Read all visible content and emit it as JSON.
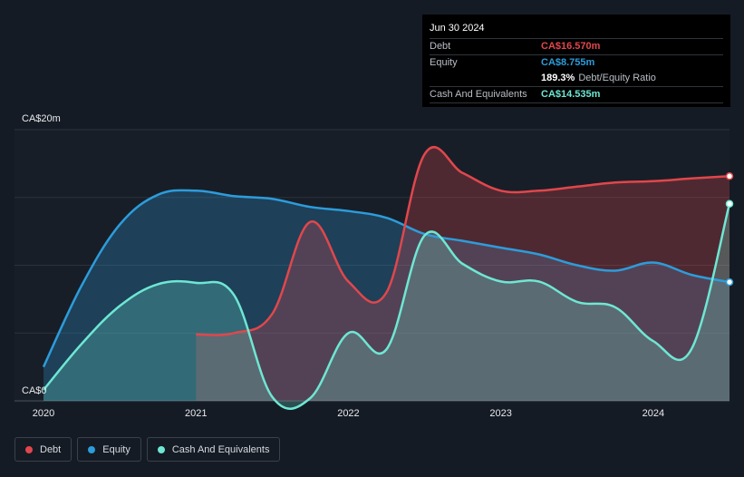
{
  "tooltip": {
    "date": "Jun 30 2024",
    "rows": [
      {
        "label": "Debt",
        "value": "CA$16.570m"
      },
      {
        "label": "Equity",
        "value": "CA$8.755m"
      },
      {
        "label": "",
        "value": "189.3%",
        "suffix": "Debt/Equity Ratio"
      },
      {
        "label": "Cash And Equivalents",
        "value": "CA$14.535m"
      }
    ]
  },
  "colors": {
    "debt": "#e0474c",
    "equity": "#2d9cdb",
    "cash": "#6ee7d3",
    "background": "#151b24"
  },
  "legend": {
    "debt": "Debt",
    "equity": "Equity",
    "cash": "Cash And Equivalents"
  },
  "chart_data": {
    "type": "area",
    "title": "",
    "xlabel": "",
    "ylabel": "",
    "y_top_label": "CA$20m",
    "y_bottom_label": "CA$0",
    "ylim": [
      0,
      20
    ],
    "xlim": [
      2020.0,
      2024.5
    ],
    "x_ticks": [
      {
        "value": 2020,
        "label": "2020"
      },
      {
        "value": 2021,
        "label": "2021"
      },
      {
        "value": 2022,
        "label": "2022"
      },
      {
        "value": 2023,
        "label": "2023"
      },
      {
        "value": 2024,
        "label": "2024"
      }
    ],
    "grid": true,
    "series": [
      {
        "name": "Debt",
        "x": [
          2021.0,
          2021.25,
          2021.5,
          2021.75,
          2022.0,
          2022.25,
          2022.5,
          2022.75,
          2023.0,
          2023.25,
          2023.5,
          2023.75,
          2024.0,
          2024.25,
          2024.5
        ],
        "values": [
          4.9,
          5.0,
          6.4,
          13.2,
          8.8,
          8.0,
          18.2,
          16.8,
          15.5,
          15.5,
          15.8,
          16.1,
          16.2,
          16.4,
          16.57
        ]
      },
      {
        "name": "Equity",
        "x": [
          2020.0,
          2020.25,
          2020.5,
          2020.75,
          2021.0,
          2021.25,
          2021.5,
          2021.75,
          2022.0,
          2022.25,
          2022.5,
          2022.75,
          2023.0,
          2023.25,
          2023.5,
          2023.75,
          2024.0,
          2024.25,
          2024.5
        ],
        "values": [
          2.5,
          8.5,
          13.0,
          15.2,
          15.5,
          15.1,
          14.9,
          14.3,
          14.0,
          13.5,
          12.3,
          11.8,
          11.3,
          10.8,
          10.0,
          9.6,
          10.2,
          9.3,
          8.755
        ]
      },
      {
        "name": "Cash And Equivalents",
        "x": [
          2020.0,
          2020.25,
          2020.5,
          2020.75,
          2021.0,
          2021.25,
          2021.5,
          2021.75,
          2022.0,
          2022.25,
          2022.5,
          2022.75,
          2023.0,
          2023.25,
          2023.5,
          2023.75,
          2024.0,
          2024.25,
          2024.5
        ],
        "values": [
          0.8,
          4.2,
          7.0,
          8.6,
          8.7,
          7.8,
          0.3,
          0.2,
          5.0,
          3.8,
          12.2,
          10.1,
          8.8,
          8.8,
          7.3,
          6.9,
          4.4,
          3.8,
          14.535
        ]
      }
    ]
  }
}
